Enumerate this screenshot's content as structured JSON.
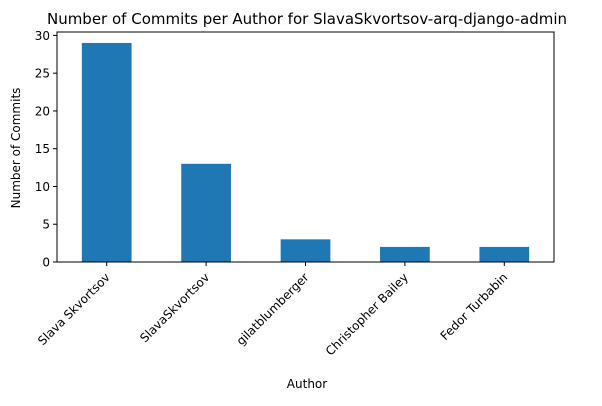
{
  "chart_data": {
    "type": "bar",
    "title": "Number of Commits per Author for SlavaSkvortsov-arq-django-admin",
    "xlabel": "Author",
    "ylabel": "Number of Commits",
    "categories": [
      "Slava Skvortsov",
      "SlavaSkvortsov",
      "gilatblumberger",
      "Christopher Bailey",
      "Fedor Turbabin"
    ],
    "values": [
      29,
      13,
      3,
      2,
      2
    ],
    "ylim": [
      0,
      30.45
    ],
    "yticks": [
      0,
      5,
      10,
      15,
      20,
      25,
      30
    ],
    "grid": false,
    "bar_color": "#1f77b4"
  }
}
